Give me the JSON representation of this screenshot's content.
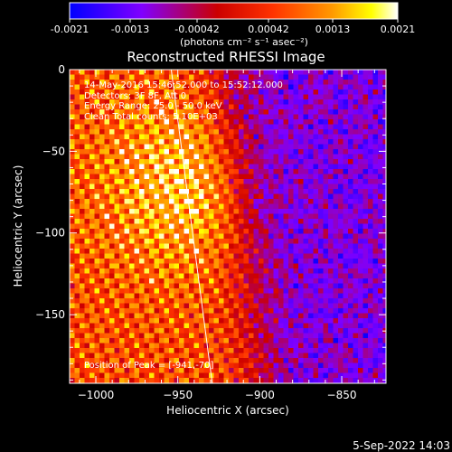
{
  "colorbar": {
    "ticks": [
      "-0.0021",
      "-0.0013",
      "-0.00042",
      "0.00042",
      "0.0013",
      "0.0021"
    ],
    "unit_label": "(photons cm⁻² s⁻¹ asec⁻²)"
  },
  "title": "Reconstructed RHESSI Image",
  "annotations": {
    "time": "14-May-2016 15:46:52.000 to 15:52:12.000",
    "detectors": "Detectors: 3F 8F, Att 0",
    "energy": "Energy Range: 25.0 - 50.0 keV",
    "clean": "Clean     Total counts: 5.10E+03",
    "peak": "Position of Peak = [-941,-70]"
  },
  "footer_date": "5-Sep-2022 14:03",
  "chart_data": {
    "type": "heatmap",
    "title": "Reconstructed RHESSI Image",
    "xlabel": "Heliocentric X (arcsec)",
    "ylabel": "Heliocentric Y (arcsec)",
    "xlim": [
      -1016,
      -823
    ],
    "ylim": [
      -192,
      0
    ],
    "x_ticks": [
      -1000,
      -950,
      -900,
      -850
    ],
    "y_ticks": [
      0,
      -50,
      -100,
      -150
    ],
    "x_tick_labels": [
      "−1000",
      "−950",
      "−900",
      "−850"
    ],
    "y_tick_labels": [
      "0",
      "−50",
      "−100",
      "−150"
    ],
    "colorbar_range": [
      -0.0021,
      0.0021
    ],
    "peak_position": [
      -941,
      -70
    ],
    "limb_line": [
      [
        -954,
        0
      ],
      [
        -929,
        -192
      ]
    ],
    "colormap": [
      "#0000ff",
      "#9900ff",
      "#ff0000",
      "#ff9900",
      "#ffff00",
      "#ffffff"
    ]
  }
}
